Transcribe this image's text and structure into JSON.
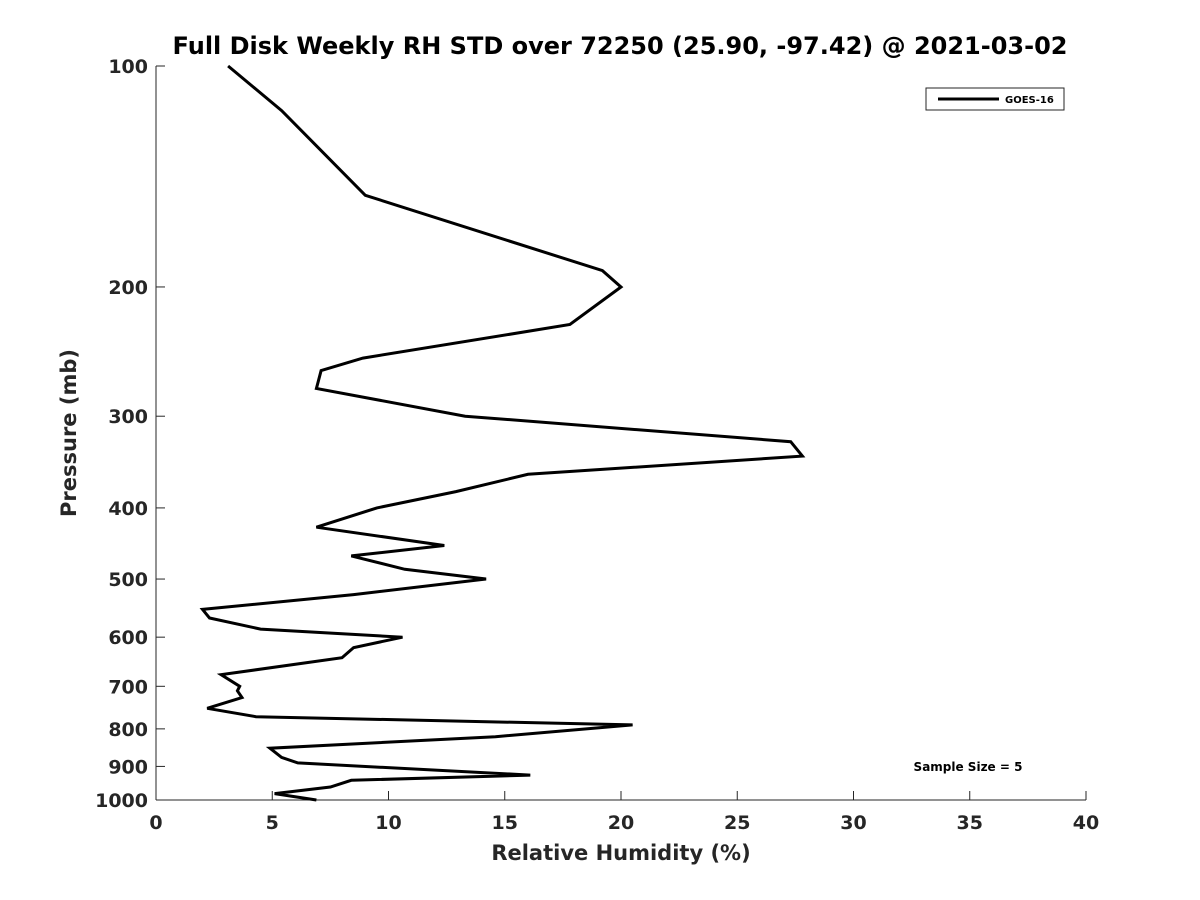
{
  "chart_data": {
    "type": "line",
    "title": "Full Disk Weekly RH STD over 72250 (25.90, -97.42) @ 2021-03-02",
    "xlabel": "Relative Humidity (%)",
    "ylabel": "Pressure (mb)",
    "xlim": [
      0,
      40
    ],
    "ylim": [
      100,
      1000
    ],
    "yscale": "log-reversed",
    "xticks": [
      0,
      5,
      10,
      15,
      20,
      25,
      30,
      35,
      40
    ],
    "xtick_labels": [
      "0",
      "5",
      "10",
      "15",
      "20",
      "25",
      "30",
      "35",
      "40"
    ],
    "yticks": [
      100,
      200,
      300,
      400,
      500,
      600,
      700,
      800,
      900,
      1000
    ],
    "ytick_labels": [
      "100",
      "200",
      "300",
      "400",
      "500",
      "600",
      "700",
      "800",
      "900",
      "1000"
    ],
    "legend": {
      "position": "top-right",
      "entries": [
        "GOES-16"
      ]
    },
    "annotation": "Sample Size = 5",
    "series": [
      {
        "name": "GOES-16",
        "color": "#000000",
        "x": [
          3.1,
          5.4,
          9.0,
          19.2,
          20.0,
          17.8,
          8.9,
          7.1,
          6.9,
          13.3,
          27.3,
          27.8,
          16.0,
          12.9,
          9.5,
          6.9,
          12.4,
          8.4,
          10.7,
          14.2,
          8.5,
          2.0,
          2.3,
          4.5,
          10.6,
          8.5,
          8.0,
          2.8,
          3.6,
          3.5,
          3.7,
          2.2,
          4.3,
          20.5,
          14.6,
          4.9,
          5.4,
          6.1,
          16.1,
          8.4,
          7.5,
          5.1,
          6.9
        ],
        "y": [
          100,
          115,
          150,
          190,
          200,
          225,
          250,
          260,
          275,
          300,
          325,
          340,
          360,
          380,
          400,
          425,
          450,
          465,
          485,
          500,
          525,
          550,
          565,
          585,
          600,
          620,
          640,
          675,
          700,
          710,
          725,
          750,
          770,
          790,
          820,
          850,
          875,
          890,
          925,
          940,
          960,
          980,
          1000
        ]
      }
    ]
  }
}
